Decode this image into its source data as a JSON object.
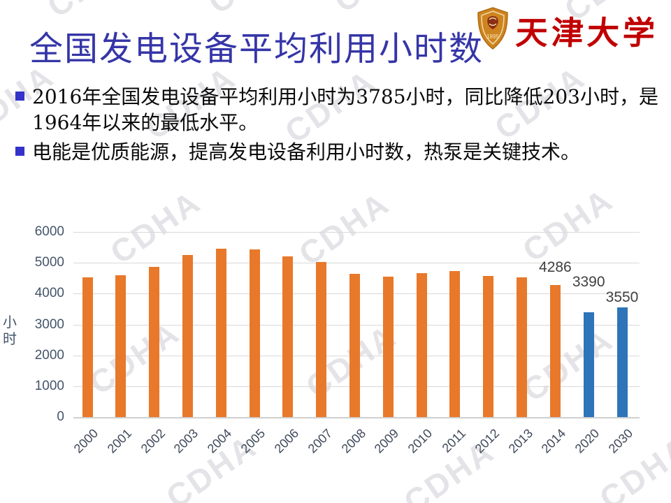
{
  "slide": {
    "title": "全国发电设备平均利用小时数",
    "logo": {
      "university": "天津大学",
      "year": "1895"
    },
    "bullets": [
      "2016年全国发电设备平均利用小时为3785小时，同比降低203小时，是1964年以来的最低水平。",
      "电能是优质能源，提高发电设备利用小时数，热泵是关键技术。"
    ],
    "watermark_text": "CDHA"
  },
  "colors": {
    "title_blue": "#3535A8",
    "bullet_marker": "#3333CC",
    "logo_red": "#C00000",
    "bar_orange": "#E8782A",
    "bar_blue": "#2E74B8",
    "axis_text": "#44546A",
    "gridline": "#D9D9D9",
    "data_label": "#404040"
  },
  "chart_data": {
    "type": "bar",
    "title": "",
    "xlabel": "",
    "ylabel": "小时",
    "ylim": [
      0,
      6000
    ],
    "yticks": [
      0,
      1000,
      2000,
      3000,
      4000,
      5000,
      6000
    ],
    "grid": true,
    "legend": "none",
    "categories": [
      "2000",
      "2001",
      "2002",
      "2003",
      "2004",
      "2005",
      "2006",
      "2007",
      "2008",
      "2009",
      "2010",
      "2011",
      "2012",
      "2013",
      "2014",
      "2020",
      "2030"
    ],
    "values": [
      4520,
      4590,
      4870,
      5250,
      5460,
      5430,
      5200,
      5020,
      4650,
      4550,
      4660,
      4730,
      4580,
      4520,
      4286,
      3390,
      3550
    ],
    "highlight_categories": [
      "2020",
      "2030"
    ],
    "data_labels": [
      {
        "category": "2014",
        "value": 4286
      },
      {
        "category": "2020",
        "value": 3390
      },
      {
        "category": "2030",
        "value": 3550
      }
    ],
    "label_offsets": {
      "2014": 37,
      "2020": 55,
      "2030": 26
    }
  }
}
